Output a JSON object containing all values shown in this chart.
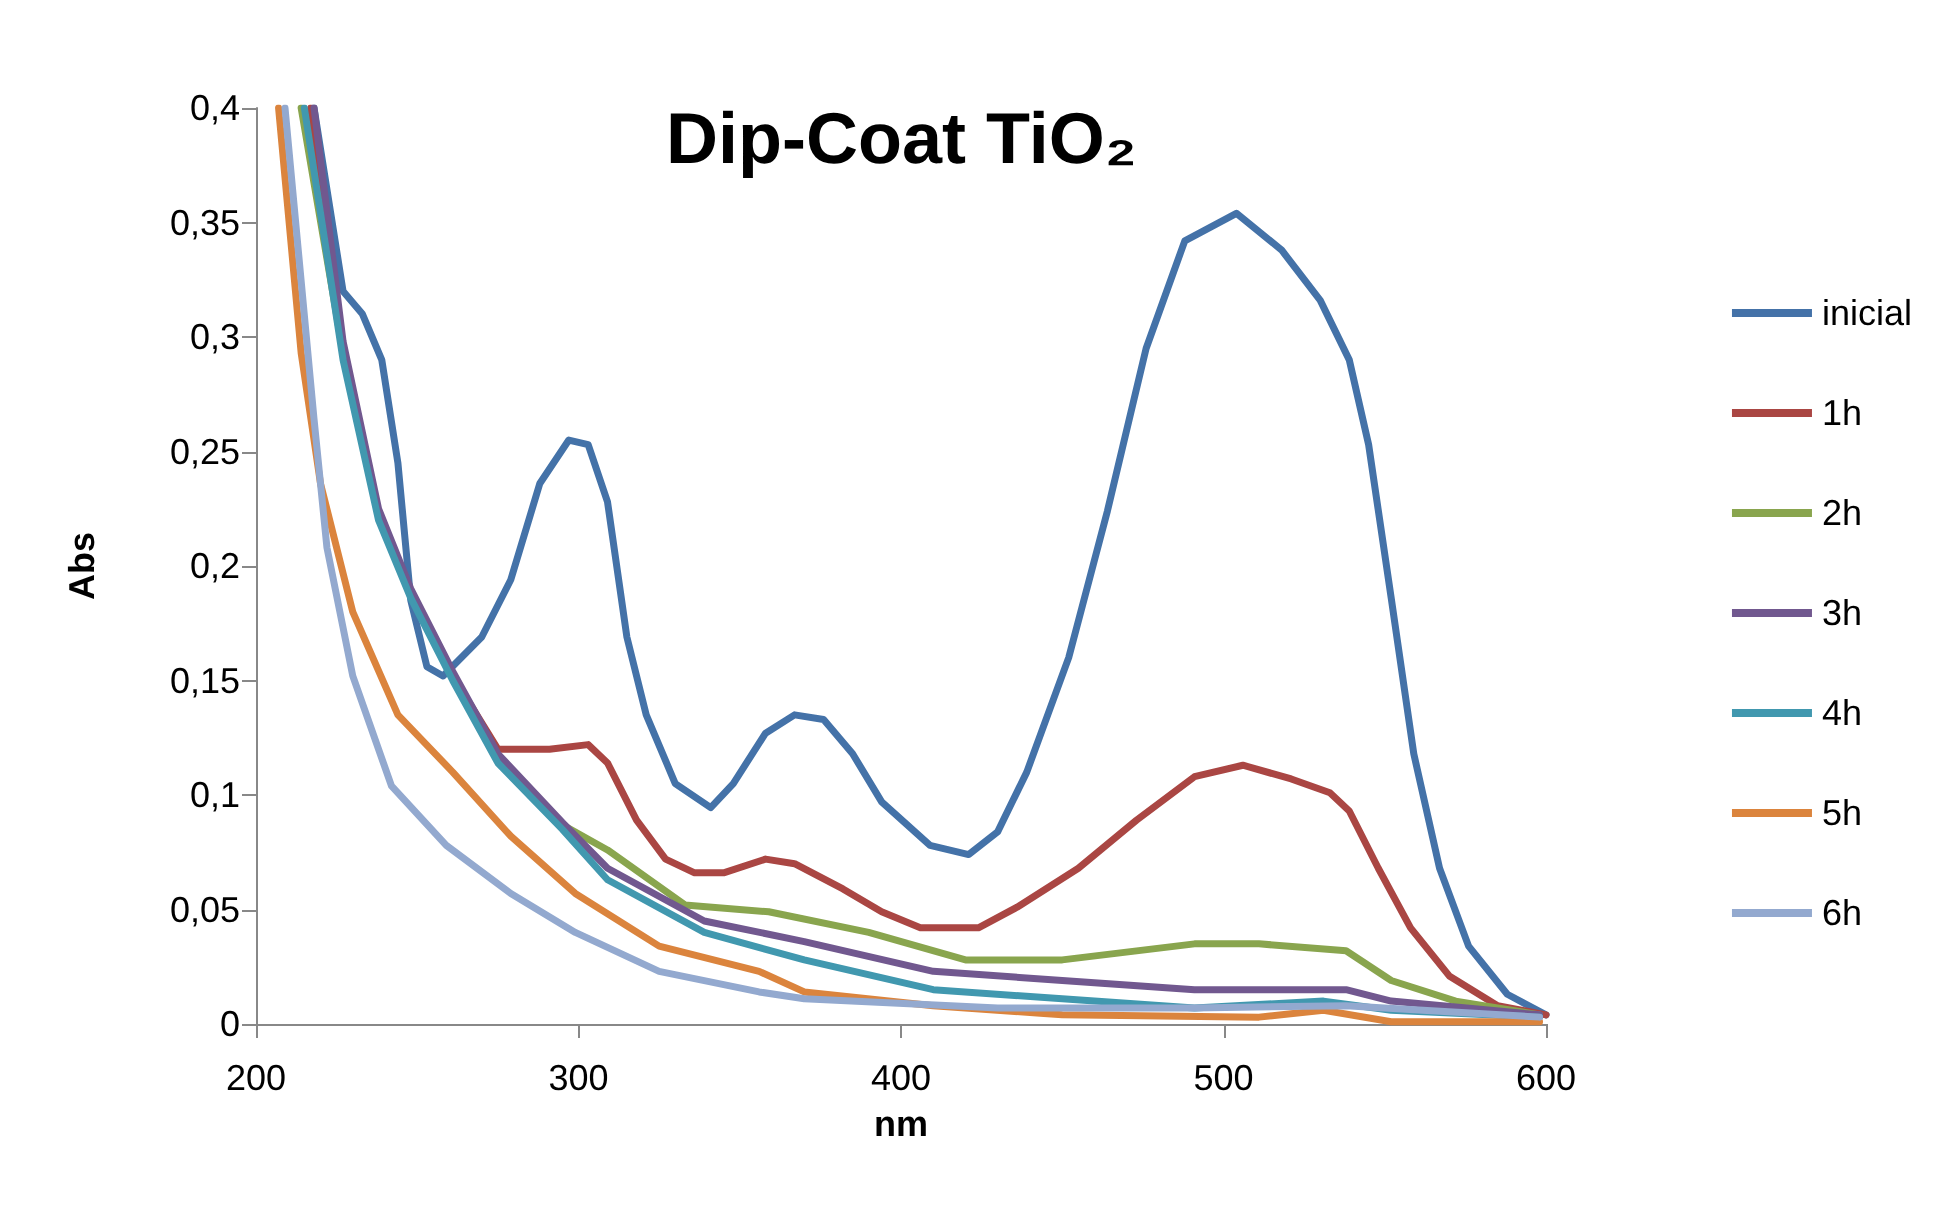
{
  "chart_data": {
    "type": "line",
    "title": "Dip-Coat TiO₂",
    "xlabel": "nm",
    "ylabel": "Abs",
    "xlim": [
      200,
      600
    ],
    "xticks": [
      200,
      300,
      400,
      500,
      600
    ],
    "ylim": [
      0,
      0.4
    ],
    "yticks": [
      {
        "value": 0,
        "label": "0"
      },
      {
        "value": 0.05,
        "label": "0,05"
      },
      {
        "value": 0.1,
        "label": "0,1"
      },
      {
        "value": 0.15,
        "label": "0,15"
      },
      {
        "value": 0.2,
        "label": "0,2"
      },
      {
        "value": 0.25,
        "label": "0,25"
      },
      {
        "value": 0.3,
        "label": "0,3"
      },
      {
        "value": 0.35,
        "label": "0,35"
      },
      {
        "value": 0.4,
        "label": "0,4"
      }
    ],
    "grid": false,
    "legend": "right",
    "marker": "none",
    "line_style": "solid",
    "series": [
      {
        "name": "inicial",
        "color": "#4472a8",
        "x": [
          218,
          227,
          233,
          239,
          244,
          248,
          253,
          258,
          270,
          279,
          288,
          297,
          303,
          309,
          315,
          321,
          330,
          341,
          348,
          358,
          367,
          376,
          385,
          394,
          409,
          421,
          430,
          439,
          452,
          464,
          476,
          488,
          504,
          518,
          530,
          539,
          545,
          552,
          559,
          567,
          576,
          588,
          600
        ],
        "values": [
          0.4,
          0.32,
          0.31,
          0.29,
          0.245,
          0.185,
          0.156,
          0.152,
          0.169,
          0.194,
          0.236,
          0.255,
          0.253,
          0.228,
          0.169,
          0.135,
          0.105,
          0.0945,
          0.105,
          0.127,
          0.135,
          0.133,
          0.118,
          0.097,
          0.078,
          0.074,
          0.084,
          0.11,
          0.16,
          0.224,
          0.295,
          0.342,
          0.354,
          0.338,
          0.316,
          0.29,
          0.253,
          0.186,
          0.118,
          0.068,
          0.034,
          0.013,
          0.004
        ]
      },
      {
        "name": "1h",
        "color": "#aa4643",
        "x": [
          217,
          227,
          238,
          248,
          261,
          275,
          291,
          303,
          309,
          318,
          327,
          336,
          345,
          358,
          367,
          382,
          394,
          406,
          424,
          436,
          455,
          473,
          491,
          506,
          521,
          533,
          539,
          548,
          558,
          570,
          585,
          600
        ],
        "values": [
          0.4,
          0.293,
          0.222,
          0.188,
          0.152,
          0.12,
          0.12,
          0.122,
          0.114,
          0.089,
          0.072,
          0.066,
          0.066,
          0.072,
          0.07,
          0.059,
          0.049,
          0.042,
          0.042,
          0.051,
          0.068,
          0.089,
          0.108,
          0.113,
          0.107,
          0.101,
          0.093,
          0.068,
          0.042,
          0.021,
          0.008,
          0.004
        ]
      },
      {
        "name": "2h",
        "color": "#89a54e",
        "x": [
          214,
          227,
          238,
          248,
          261,
          275,
          295,
          309,
          333,
          359,
          390,
          420,
          450,
          491,
          511,
          538,
          552,
          572,
          598
        ],
        "values": [
          0.4,
          0.293,
          0.222,
          0.188,
          0.152,
          0.116,
          0.087,
          0.076,
          0.052,
          0.049,
          0.04,
          0.028,
          0.028,
          0.035,
          0.035,
          0.032,
          0.019,
          0.01,
          0.004
        ]
      },
      {
        "name": "3h",
        "color": "#71588f",
        "x": [
          218,
          227,
          238,
          248,
          261,
          275,
          295,
          309,
          339,
          370,
          410,
          450,
          491,
          538,
          552,
          598
        ],
        "values": [
          0.4,
          0.298,
          0.225,
          0.19,
          0.154,
          0.118,
          0.088,
          0.068,
          0.045,
          0.036,
          0.023,
          0.019,
          0.015,
          0.015,
          0.01,
          0.004
        ]
      },
      {
        "name": "4h",
        "color": "#4198af",
        "x": [
          215,
          227,
          238,
          248,
          261,
          275,
          295,
          309,
          339,
          370,
          410,
          450,
          491,
          531,
          552,
          598
        ],
        "values": [
          0.4,
          0.29,
          0.22,
          0.186,
          0.15,
          0.114,
          0.085,
          0.063,
          0.04,
          0.028,
          0.015,
          0.011,
          0.007,
          0.01,
          0.006,
          0.003
        ]
      },
      {
        "name": "5h",
        "color": "#db843d",
        "x": [
          207,
          214,
          220,
          230,
          244,
          261,
          279,
          299,
          325,
          356,
          370,
          410,
          450,
          511,
          531,
          552,
          598
        ],
        "values": [
          0.4,
          0.293,
          0.236,
          0.18,
          0.135,
          0.11,
          0.082,
          0.057,
          0.034,
          0.023,
          0.014,
          0.008,
          0.004,
          0.003,
          0.006,
          0.001,
          0.001
        ]
      },
      {
        "name": "6h",
        "color": "#93a9cf",
        "x": [
          209,
          218,
          222,
          230,
          242,
          259,
          279,
          299,
          325,
          356,
          370,
          430,
          491,
          538,
          598
        ],
        "values": [
          0.4,
          0.264,
          0.208,
          0.152,
          0.104,
          0.078,
          0.057,
          0.04,
          0.023,
          0.014,
          0.011,
          0.007,
          0.007,
          0.008,
          0.003
        ]
      }
    ]
  }
}
